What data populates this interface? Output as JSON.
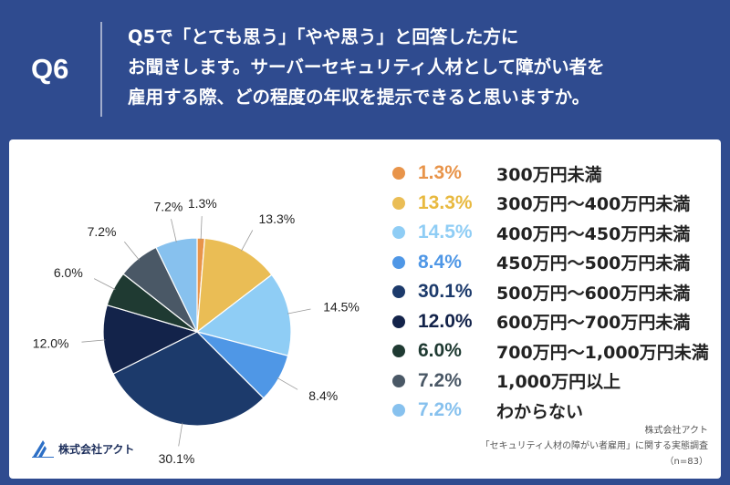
{
  "header": {
    "qnum": "Q6",
    "question_lines": [
      "Q5で「とても思う」「やや思う」と回答した方に",
      "お聞きします。サーバーセキュリティ人材として障がい者を",
      "雇用する際、どの程度の年収を提示できると思いますか。"
    ]
  },
  "chart_data": {
    "type": "pie",
    "slices": [
      {
        "label": "300万円未満",
        "value": 1.3,
        "pct_text": "1.3%",
        "color": "#e8944a"
      },
      {
        "label": "300万円～400万円未満",
        "value": 13.3,
        "pct_text": "13.3%",
        "color": "#eabd55"
      },
      {
        "label": "400万円～450万円未満",
        "value": 14.5,
        "pct_text": "14.5%",
        "color": "#8fcdf5"
      },
      {
        "label": "450万円～500万円未満",
        "value": 8.4,
        "pct_text": "8.4%",
        "color": "#4f97e6"
      },
      {
        "label": "500万円～600万円未満",
        "value": 30.1,
        "pct_text": "30.1%",
        "color": "#1c3a6b"
      },
      {
        "label": "600万円～700万円未満",
        "value": 12.0,
        "pct_text": "12.0%",
        "color": "#13234a"
      },
      {
        "label": "700万円～1,000万円未満",
        "value": 6.0,
        "pct_text": "6.0%",
        "color": "#1f3a32"
      },
      {
        "label": "1,000万円以上",
        "value": 7.2,
        "pct_text": "7.2%",
        "color": "#4a5866"
      },
      {
        "label": "わからない",
        "value": 7.2,
        "pct_text": "7.2%",
        "color": "#87c1ee"
      }
    ]
  },
  "legend_colors": {
    "pct_text": [
      "#e8944a",
      "#e8b93f",
      "#8fcdf5",
      "#4f97e6",
      "#1c3a6b",
      "#13234a",
      "#1f3a32",
      "#4a5866",
      "#87c1ee"
    ]
  },
  "footer": {
    "logo_text": "株式会社アクト",
    "source_lines": [
      "株式会社アクト",
      "「セキュリティ人材の障がい者雇用」に関する実態調査",
      "（n=83）"
    ]
  }
}
